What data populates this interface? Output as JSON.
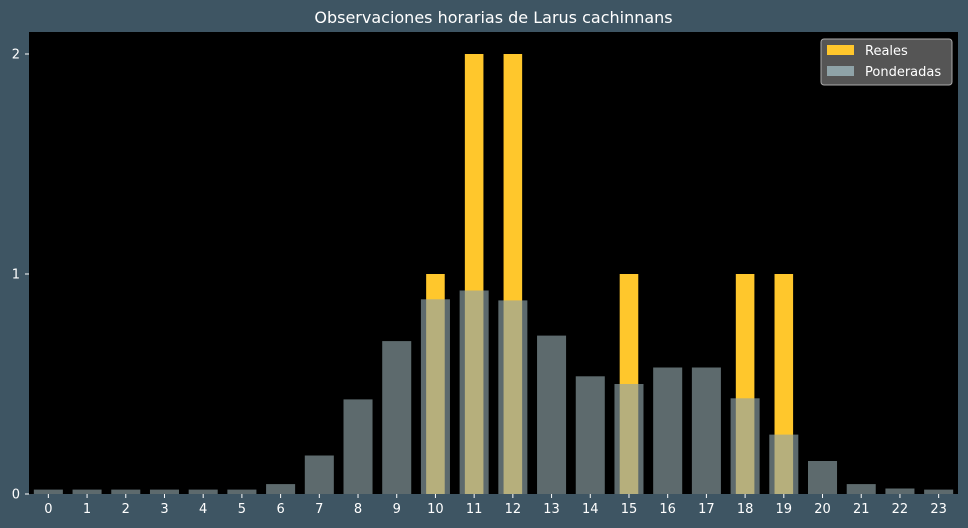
{
  "chart_data": {
    "type": "bar",
    "title": "Observaciones horarias de Larus cachinnans",
    "xlabel": "",
    "ylabel": "",
    "categories": [
      "0",
      "1",
      "2",
      "3",
      "4",
      "5",
      "6",
      "7",
      "8",
      "9",
      "10",
      "11",
      "12",
      "13",
      "14",
      "15",
      "16",
      "17",
      "18",
      "19",
      "20",
      "21",
      "22",
      "23"
    ],
    "series": [
      {
        "name": "Reales",
        "color": "#ffc72c",
        "values": [
          0,
          0,
          0,
          0,
          0,
          0,
          0,
          0,
          0,
          0,
          1,
          2,
          2,
          0,
          0,
          1,
          0,
          0,
          1,
          1,
          0,
          0,
          0,
          0
        ]
      },
      {
        "name": "Ponderadas",
        "color": "#8fa3a8",
        "values": [
          0.02,
          0.02,
          0.02,
          0.02,
          0.02,
          0.02,
          0.045,
          0.175,
          0.43,
          0.695,
          0.885,
          0.925,
          0.88,
          0.72,
          0.535,
          0.5,
          0.575,
          0.575,
          0.435,
          0.27,
          0.15,
          0.045,
          0.025,
          0.02
        ]
      }
    ],
    "yticks": [
      "0",
      "1",
      "2"
    ],
    "ylim": [
      0,
      2.1
    ],
    "legend_position": "top-right",
    "grid": false,
    "colors": {
      "figure_background": "#3e5563",
      "plot_background": "#000000",
      "text": "#ffffff",
      "legend_background": "#555555",
      "legend_border": "#aaaaaa"
    }
  }
}
